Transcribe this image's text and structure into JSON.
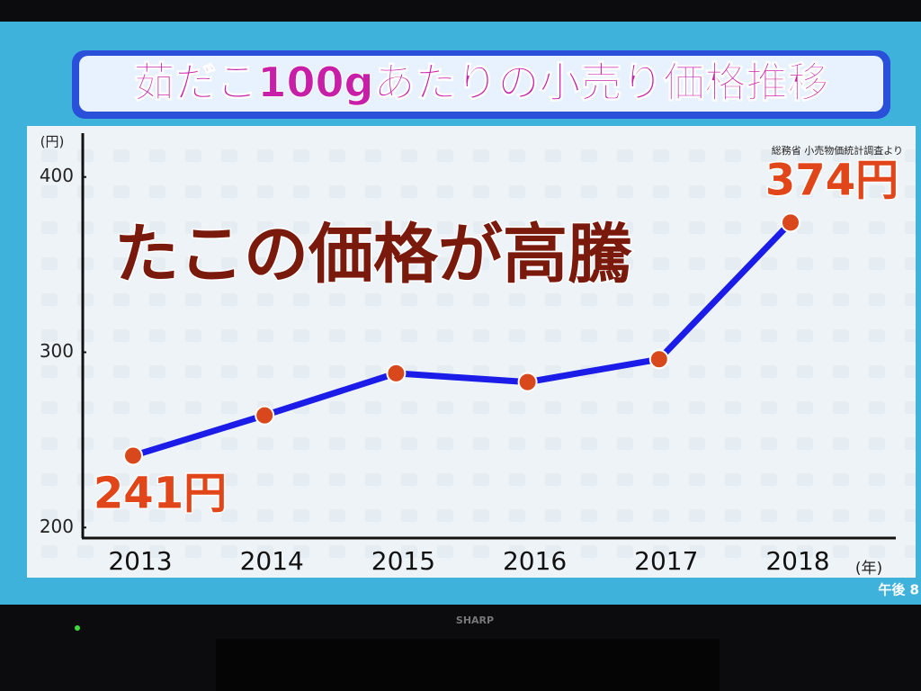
{
  "chart_data": {
    "type": "line",
    "title": "茹だこ100gあたりの小売り価格推移",
    "annotation": "たこの価格が高騰",
    "source": "総務省 小売物価統計調査より",
    "y_label": "(円)",
    "x_label": "(年)",
    "categories": [
      "2013",
      "2014",
      "2015",
      "2016",
      "2017",
      "2018"
    ],
    "values": [
      241,
      264,
      288,
      283,
      296,
      374
    ],
    "value_labels": [
      "241円",
      null,
      null,
      null,
      null,
      "374円"
    ],
    "color": "#1c1ce8",
    "marker_color": "#d9481c",
    "ylim": [
      194,
      425
    ],
    "yticks": [
      200,
      300,
      400
    ]
  },
  "screen": {
    "clock": "午後 8",
    "brand": "SHARP"
  }
}
